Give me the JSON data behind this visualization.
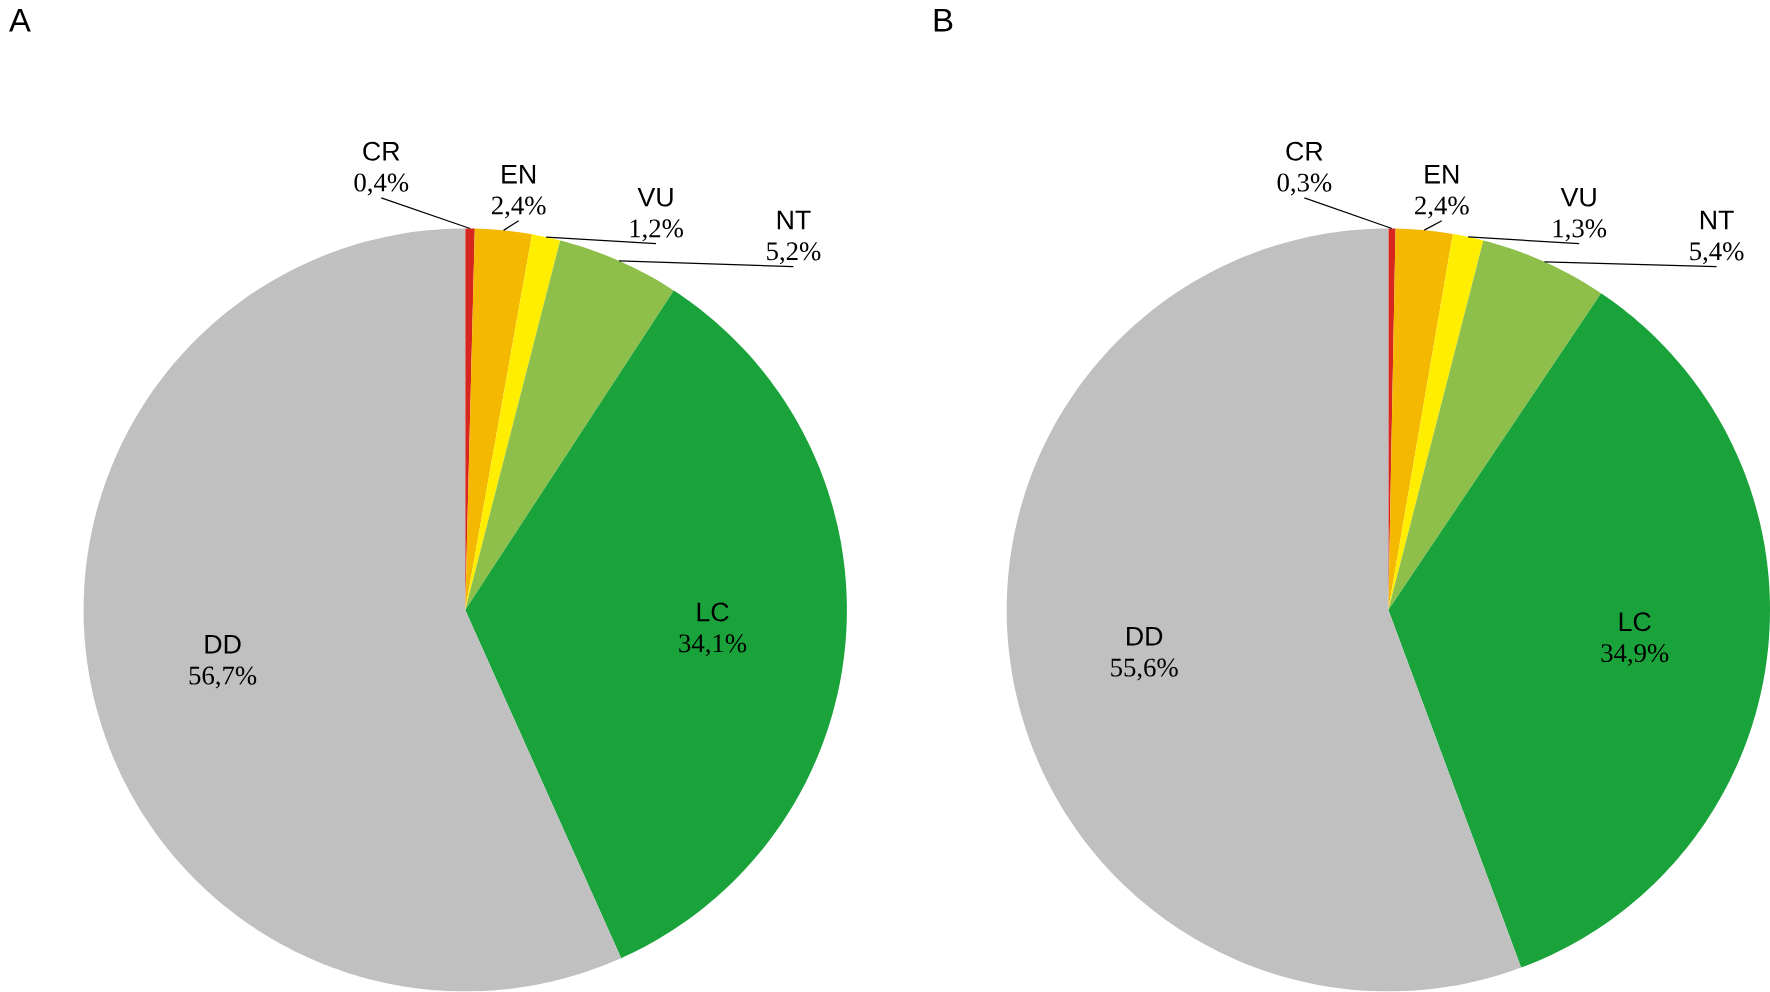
{
  "chart_data": [
    {
      "type": "pie",
      "title": "A",
      "categories": [
        "CR",
        "EN",
        "VU",
        "NT",
        "LC",
        "DD"
      ],
      "values": [
        0.4,
        2.4,
        1.2,
        5.2,
        34.1,
        56.7
      ],
      "value_labels": [
        "0,4%",
        "2,4%",
        "1,2%",
        "5,2%",
        "34,1%",
        "56,7%"
      ],
      "colors": [
        "#d7261e",
        "#f5b800",
        "#ffee00",
        "#8dbf4a",
        "#1aa33a",
        "#c0c0c0"
      ]
    },
    {
      "type": "pie",
      "title": "B",
      "categories": [
        "CR",
        "EN",
        "VU",
        "NT",
        "LC",
        "DD"
      ],
      "values": [
        0.3,
        2.4,
        1.3,
        5.4,
        34.9,
        55.6
      ],
      "value_labels": [
        "0,3%",
        "2,4%",
        "1,3%",
        "5,4%",
        "34,9%",
        "55,6%"
      ],
      "colors": [
        "#d7261e",
        "#f5b800",
        "#ffee00",
        "#8dbf4a",
        "#1aa33a",
        "#c0c0c0"
      ]
    }
  ]
}
